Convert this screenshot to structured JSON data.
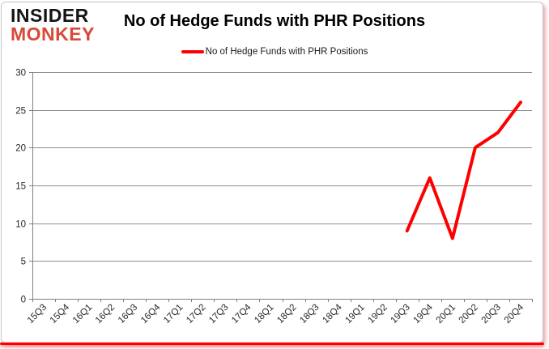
{
  "logo": {
    "line1": "INSIDER",
    "line2": "MONKEY",
    "line1_color": "#141414",
    "line2_color": "#d74a38"
  },
  "header": {
    "title": "No of Hedge Funds with PHR Positions"
  },
  "legend": {
    "label": "No of Hedge Funds with PHR Positions",
    "line_color": "#fe0000"
  },
  "chart_data": {
    "type": "line",
    "title": "No of Hedge Funds with PHR Positions",
    "categories": [
      "15Q3",
      "15Q4",
      "16Q1",
      "16Q2",
      "16Q3",
      "16Q4",
      "17Q1",
      "17Q2",
      "17Q3",
      "17Q4",
      "18Q1",
      "18Q2",
      "18Q3",
      "18Q4",
      "19Q1",
      "19Q2",
      "19Q3",
      "19Q4",
      "20Q1",
      "20Q2",
      "20Q3",
      "20Q4"
    ],
    "series": [
      {
        "name": "No of Hedge Funds with PHR Positions",
        "color": "#fe0000",
        "values": [
          null,
          null,
          null,
          null,
          null,
          null,
          null,
          null,
          null,
          null,
          null,
          null,
          null,
          null,
          null,
          null,
          9,
          16,
          8,
          20,
          22,
          26
        ]
      }
    ],
    "xlabel": "",
    "ylabel": "",
    "ylim": [
      0,
      30
    ],
    "ytick_step": 5,
    "grid": true,
    "legend_position": "top",
    "gridline_color": "#8f8f8f",
    "axis_color": "#7f7f7f",
    "tick_label_color": "#262626"
  }
}
